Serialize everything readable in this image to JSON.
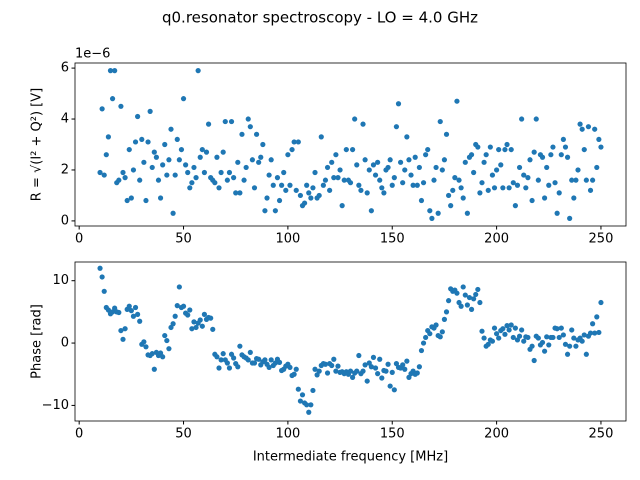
{
  "title": "q0.resonator spectroscopy - LO = 4.0 GHz",
  "chart_data": [
    {
      "type": "scatter",
      "ylabel": "R = √(I² + Q²) [V]",
      "offset_label": "1e−6",
      "xlim": [
        -2,
        262
      ],
      "xticks": [
        0,
        50,
        100,
        150,
        200,
        250
      ],
      "ylim": [
        -0.2,
        6.2
      ],
      "yticks": [
        0,
        2,
        4,
        6
      ],
      "x": [
        10,
        11,
        12,
        13,
        14,
        15,
        16,
        17,
        18,
        19,
        20,
        21,
        22,
        23,
        24,
        25,
        26,
        27,
        28,
        29,
        30,
        31,
        32,
        33,
        34,
        35,
        36,
        37,
        38,
        39,
        40,
        41,
        42,
        43,
        44,
        45,
        46,
        47,
        48,
        49,
        50,
        51,
        52,
        53,
        54,
        55,
        56,
        57,
        58,
        59,
        60,
        61,
        62,
        63,
        64,
        65,
        66,
        67,
        68,
        69,
        70,
        71,
        72,
        73,
        74,
        75,
        76,
        77,
        78,
        79,
        80,
        81,
        82,
        83,
        84,
        85,
        86,
        87,
        88,
        89,
        90,
        91,
        92,
        93,
        94,
        95,
        96,
        97,
        98,
        99,
        100,
        101,
        102,
        103,
        104,
        105,
        106,
        107,
        108,
        109,
        110,
        111,
        112,
        113,
        114,
        115,
        116,
        117,
        118,
        119,
        120,
        121,
        122,
        123,
        124,
        125,
        126,
        127,
        128,
        129,
        130,
        131,
        132,
        133,
        134,
        135,
        136,
        137,
        138,
        139,
        140,
        141,
        142,
        143,
        144,
        145,
        146,
        147,
        148,
        149,
        150,
        151,
        152,
        153,
        154,
        155,
        156,
        157,
        158,
        159,
        160,
        161,
        162,
        163,
        164,
        165,
        166,
        167,
        168,
        169,
        170,
        171,
        172,
        173,
        174,
        175,
        176,
        177,
        178,
        179,
        180,
        181,
        182,
        183,
        184,
        185,
        186,
        187,
        188,
        189,
        190,
        191,
        192,
        193,
        194,
        195,
        196,
        197,
        198,
        199,
        200,
        201,
        202,
        203,
        204,
        205,
        206,
        207,
        208,
        209,
        210,
        211,
        212,
        213,
        214,
        215,
        216,
        217,
        218,
        219,
        220,
        221,
        222,
        223,
        224,
        225,
        226,
        227,
        228,
        229,
        230,
        231,
        232,
        233,
        234,
        235,
        236,
        237,
        238,
        239,
        240,
        241,
        242,
        243,
        244,
        245,
        246,
        247,
        248,
        249,
        250
      ],
      "series": [
        {
          "color": "#1f77b4",
          "values": [
            1.9,
            4.4,
            1.8,
            2.6,
            3.3,
            5.9,
            4.8,
            5.9,
            1.5,
            1.6,
            4.5,
            1.9,
            1.7,
            0.8,
            2.8,
            0.9,
            2.0,
            3.1,
            4.1,
            1.6,
            3.2,
            2.3,
            0.8,
            3.1,
            4.3,
            2.1,
            2.7,
            2.5,
            1.6,
            0.9,
            2.2,
            3.0,
            1.8,
            2.4,
            3.6,
            0.3,
            1.8,
            3.2,
            2.4,
            2.8,
            4.8,
            2.2,
            1.9,
            1.3,
            1.5,
            2.1,
            1.7,
            5.9,
            2.5,
            2.8,
            1.9,
            2.7,
            3.8,
            1.7,
            1.6,
            1.5,
            2.5,
            1.3,
            1.9,
            2.7,
            3.9,
            1.6,
            1.9,
            3.9,
            1.7,
            1.1,
            2.3,
            1.1,
            3.4,
            1.6,
            2.1,
            4.0,
            3.7,
            2.4,
            1.3,
            3.4,
            2.3,
            2.5,
            3.0,
            0.4,
            0.9,
            1.8,
            2.4,
            1.4,
            0.4,
            1.7,
            0.8,
            1.4,
            1.9,
            1.2,
            2.6,
            1.4,
            2.8,
            3.1,
            1.2,
            3.1,
            1.0,
            0.6,
            0.7,
            1.4,
            1.1,
            0.9,
            1.3,
            1.9,
            0.9,
            1.0,
            3.3,
            1.4,
            1.6,
            2.1,
            1.2,
            2.3,
            1.7,
            2.6,
            1.7,
            2.0,
            0.6,
            1.6,
            2.8,
            1.6,
            1.5,
            2.8,
            4.0,
            2.2,
            1.4,
            1.2,
            3.8,
            2.4,
            1.1,
            2.0,
            0.4,
            2.2,
            1.8,
            2.3,
            1.6,
            1.3,
            1.1,
            2.0,
            2.1,
            2.4,
            1.4,
            1.7,
            3.7,
            4.6,
            2.3,
            1.5,
            2.0,
            3.3,
            2.4,
            1.8,
            1.4,
            2.5,
            1.4,
            2.1,
            0.8,
            1.5,
            2.6,
            2.8,
            0.4,
            0.1,
            1.6,
            2.1,
            0.3,
            3.9,
            2.0,
            2.4,
            3.4,
            1.0,
            0.6,
            1.2,
            1.7,
            4.7,
            1.6,
            1.3,
            0.9,
            2.3,
            0.3,
            2.5,
            2.6,
            1.9,
            3.0,
            2.9,
            1.1,
            1.5,
            2.3,
            2.6,
            1.2,
            2.9,
            1.8,
            1.3,
            2.0,
            2.8,
            2.2,
            1.3,
            2.8,
            3.0,
            1.3,
            2.8,
            1.5,
            0.6,
            1.4,
            2.1,
            4.0,
            1.8,
            1.3,
            1.7,
            2.4,
            0.8,
            2.7,
            4.0,
            1.6,
            2.6,
            2.5,
            0.9,
            2.1,
            1.4,
            2.6,
            2.9,
            1.5,
            0.3,
            1.1,
            2.6,
            3.2,
            2.9,
            2.5,
            0.1,
            1.6,
            0.9,
            1.6,
            2.0,
            3.8,
            3.6,
            2.8,
            1.6,
            3.7,
            1.2,
            1.6,
            3.6,
            2.1,
            3.2,
            2.9
          ]
        }
      ]
    },
    {
      "type": "scatter",
      "ylabel": "Phase [rad]",
      "xlabel": "Intermediate frequency [MHz]",
      "xlim": [
        -2,
        262
      ],
      "xticks": [
        0,
        50,
        100,
        150,
        200,
        250
      ],
      "ylim": [
        -12.5,
        13.0
      ],
      "yticks": [
        {
          "value": -10,
          "label": "−10"
        },
        0,
        10
      ],
      "x": [
        10,
        11,
        12,
        13,
        14,
        15,
        16,
        17,
        18,
        19,
        20,
        21,
        22,
        23,
        24,
        25,
        26,
        27,
        28,
        29,
        30,
        31,
        32,
        33,
        34,
        35,
        36,
        37,
        38,
        39,
        40,
        41,
        42,
        43,
        44,
        45,
        46,
        47,
        48,
        49,
        50,
        51,
        52,
        53,
        54,
        55,
        56,
        57,
        58,
        59,
        60,
        61,
        62,
        63,
        64,
        65,
        66,
        67,
        68,
        69,
        70,
        71,
        72,
        73,
        74,
        75,
        76,
        77,
        78,
        79,
        80,
        81,
        82,
        83,
        84,
        85,
        86,
        87,
        88,
        89,
        90,
        91,
        92,
        93,
        94,
        95,
        96,
        97,
        98,
        99,
        100,
        101,
        102,
        103,
        104,
        105,
        106,
        107,
        108,
        109,
        110,
        111,
        112,
        113,
        114,
        115,
        116,
        117,
        118,
        119,
        120,
        121,
        122,
        123,
        124,
        125,
        126,
        127,
        128,
        129,
        130,
        131,
        132,
        133,
        134,
        135,
        136,
        137,
        138,
        139,
        140,
        141,
        142,
        143,
        144,
        145,
        146,
        147,
        148,
        149,
        150,
        151,
        152,
        153,
        154,
        155,
        156,
        157,
        158,
        159,
        160,
        161,
        162,
        163,
        164,
        165,
        166,
        167,
        168,
        169,
        170,
        171,
        172,
        173,
        174,
        175,
        176,
        177,
        178,
        179,
        180,
        181,
        182,
        183,
        184,
        185,
        186,
        187,
        188,
        189,
        190,
        191,
        192,
        193,
        194,
        195,
        196,
        197,
        198,
        199,
        200,
        201,
        202,
        203,
        204,
        205,
        206,
        207,
        208,
        209,
        210,
        211,
        212,
        213,
        214,
        215,
        216,
        217,
        218,
        219,
        220,
        221,
        222,
        223,
        224,
        225,
        226,
        227,
        228,
        229,
        230,
        231,
        232,
        233,
        234,
        235,
        236,
        237,
        238,
        239,
        240,
        241,
        242,
        243,
        244,
        245,
        246,
        247,
        248,
        249,
        250
      ],
      "series": [
        {
          "color": "#1f77b4",
          "values": [
            12.0,
            10.6,
            8.3,
            5.7,
            5.3,
            4.7,
            5.0,
            5.6,
            5.0,
            4.9,
            2.0,
            0.6,
            2.3,
            5.4,
            5.9,
            5.2,
            4.3,
            5.7,
            4.6,
            3.5,
            -0.2,
            0.2,
            -0.6,
            -1.9,
            -2.0,
            -1.7,
            -4.2,
            -1.5,
            -2.0,
            -1.6,
            -2.2,
            1.2,
            0.4,
            -0.9,
            2.5,
            3.1,
            4.3,
            6.0,
            9.0,
            5.7,
            5.9,
            4.8,
            4.5,
            5.3,
            2.3,
            3.4,
            2.5,
            3.2,
            3.7,
            2.7,
            4.6,
            3.8,
            4.1,
            4.0,
            2.2,
            -1.8,
            -2.2,
            -4.0,
            -2.7,
            -1.7,
            -2.7,
            -3.2,
            -4.0,
            -1.8,
            -2.4,
            -3.3,
            -3.8,
            -0.5,
            -1.9,
            -2.2,
            -2.4,
            -2.7,
            -1.5,
            -3.2,
            -3.2,
            -2.5,
            -2.6,
            -3.5,
            -3.0,
            -2.7,
            -3.4,
            -3.9,
            -2.7,
            -3.6,
            -3.2,
            -2.6,
            -3.1,
            -4.4,
            -4.2,
            -3.7,
            -3.4,
            -3.9,
            -5.2,
            -5.0,
            -4.2,
            -7.4,
            -9.3,
            -8.3,
            -9.6,
            -9.9,
            -11.1,
            -9.9,
            -7.6,
            -4.2,
            -5.1,
            -4.5,
            -3.6,
            -3.3,
            -3.4,
            -4.8,
            -3.3,
            -3.6,
            -2.6,
            -4.5,
            -3.7,
            -4.7,
            -4.6,
            -4.9,
            -4.6,
            -5.0,
            -4.5,
            -5.5,
            -4.8,
            -4.5,
            -2.0,
            -4.9,
            -4.5,
            -3.5,
            -6.1,
            -3.2,
            -3.8,
            -2.3,
            -4.0,
            -4.9,
            -2.6,
            -5.6,
            -4.4,
            -4.5,
            -3.4,
            -6.9,
            -4.7,
            -7.5,
            -3.3,
            -3.9,
            -4.0,
            -3.5,
            -4.2,
            -2.9,
            -5.5,
            -4.9,
            -4.5,
            -5.0,
            -4.8,
            -3.8,
            -1.2,
            0.0,
            0.9,
            2.0,
            1.5,
            2.6,
            2.4,
            2.9,
            1.2,
            1.0,
            1.8,
            3.8,
            5.0,
            6.8,
            8.7,
            8.3,
            8.5,
            8.0,
            6.5,
            5.9,
            9.0,
            7.7,
            6.1,
            7.3,
            5.4,
            7.1,
            7.8,
            8.6,
            6.5,
            1.9,
            0.8,
            -0.5,
            -0.2,
            0.5,
            0.3,
            2.4,
            1.5,
            0.8,
            2.0,
            2.3,
            1.4,
            2.8,
            2.1,
            2.9,
            0.9,
            2.4,
            0.5,
            1.1,
            2.1,
            0.3,
            1.0,
            0.9,
            -1.0,
            -0.5,
            -2.8,
            1.1,
            0.8,
            -0.3,
            0.1,
            -1.3,
            1.0,
            -0.3,
            0.9,
            0.9,
            2.4,
            2.3,
            0.9,
            2.4,
            1.3,
            -0.2,
            -1.8,
            -0.5,
            2.1,
            0.8,
            -0.5,
            0.5,
            0.8,
            0.3,
            1.3,
            -1.8,
            1.1,
            1.6,
            3.1,
            1.6,
            4.2,
            1.7,
            6.5
          ]
        }
      ]
    }
  ]
}
